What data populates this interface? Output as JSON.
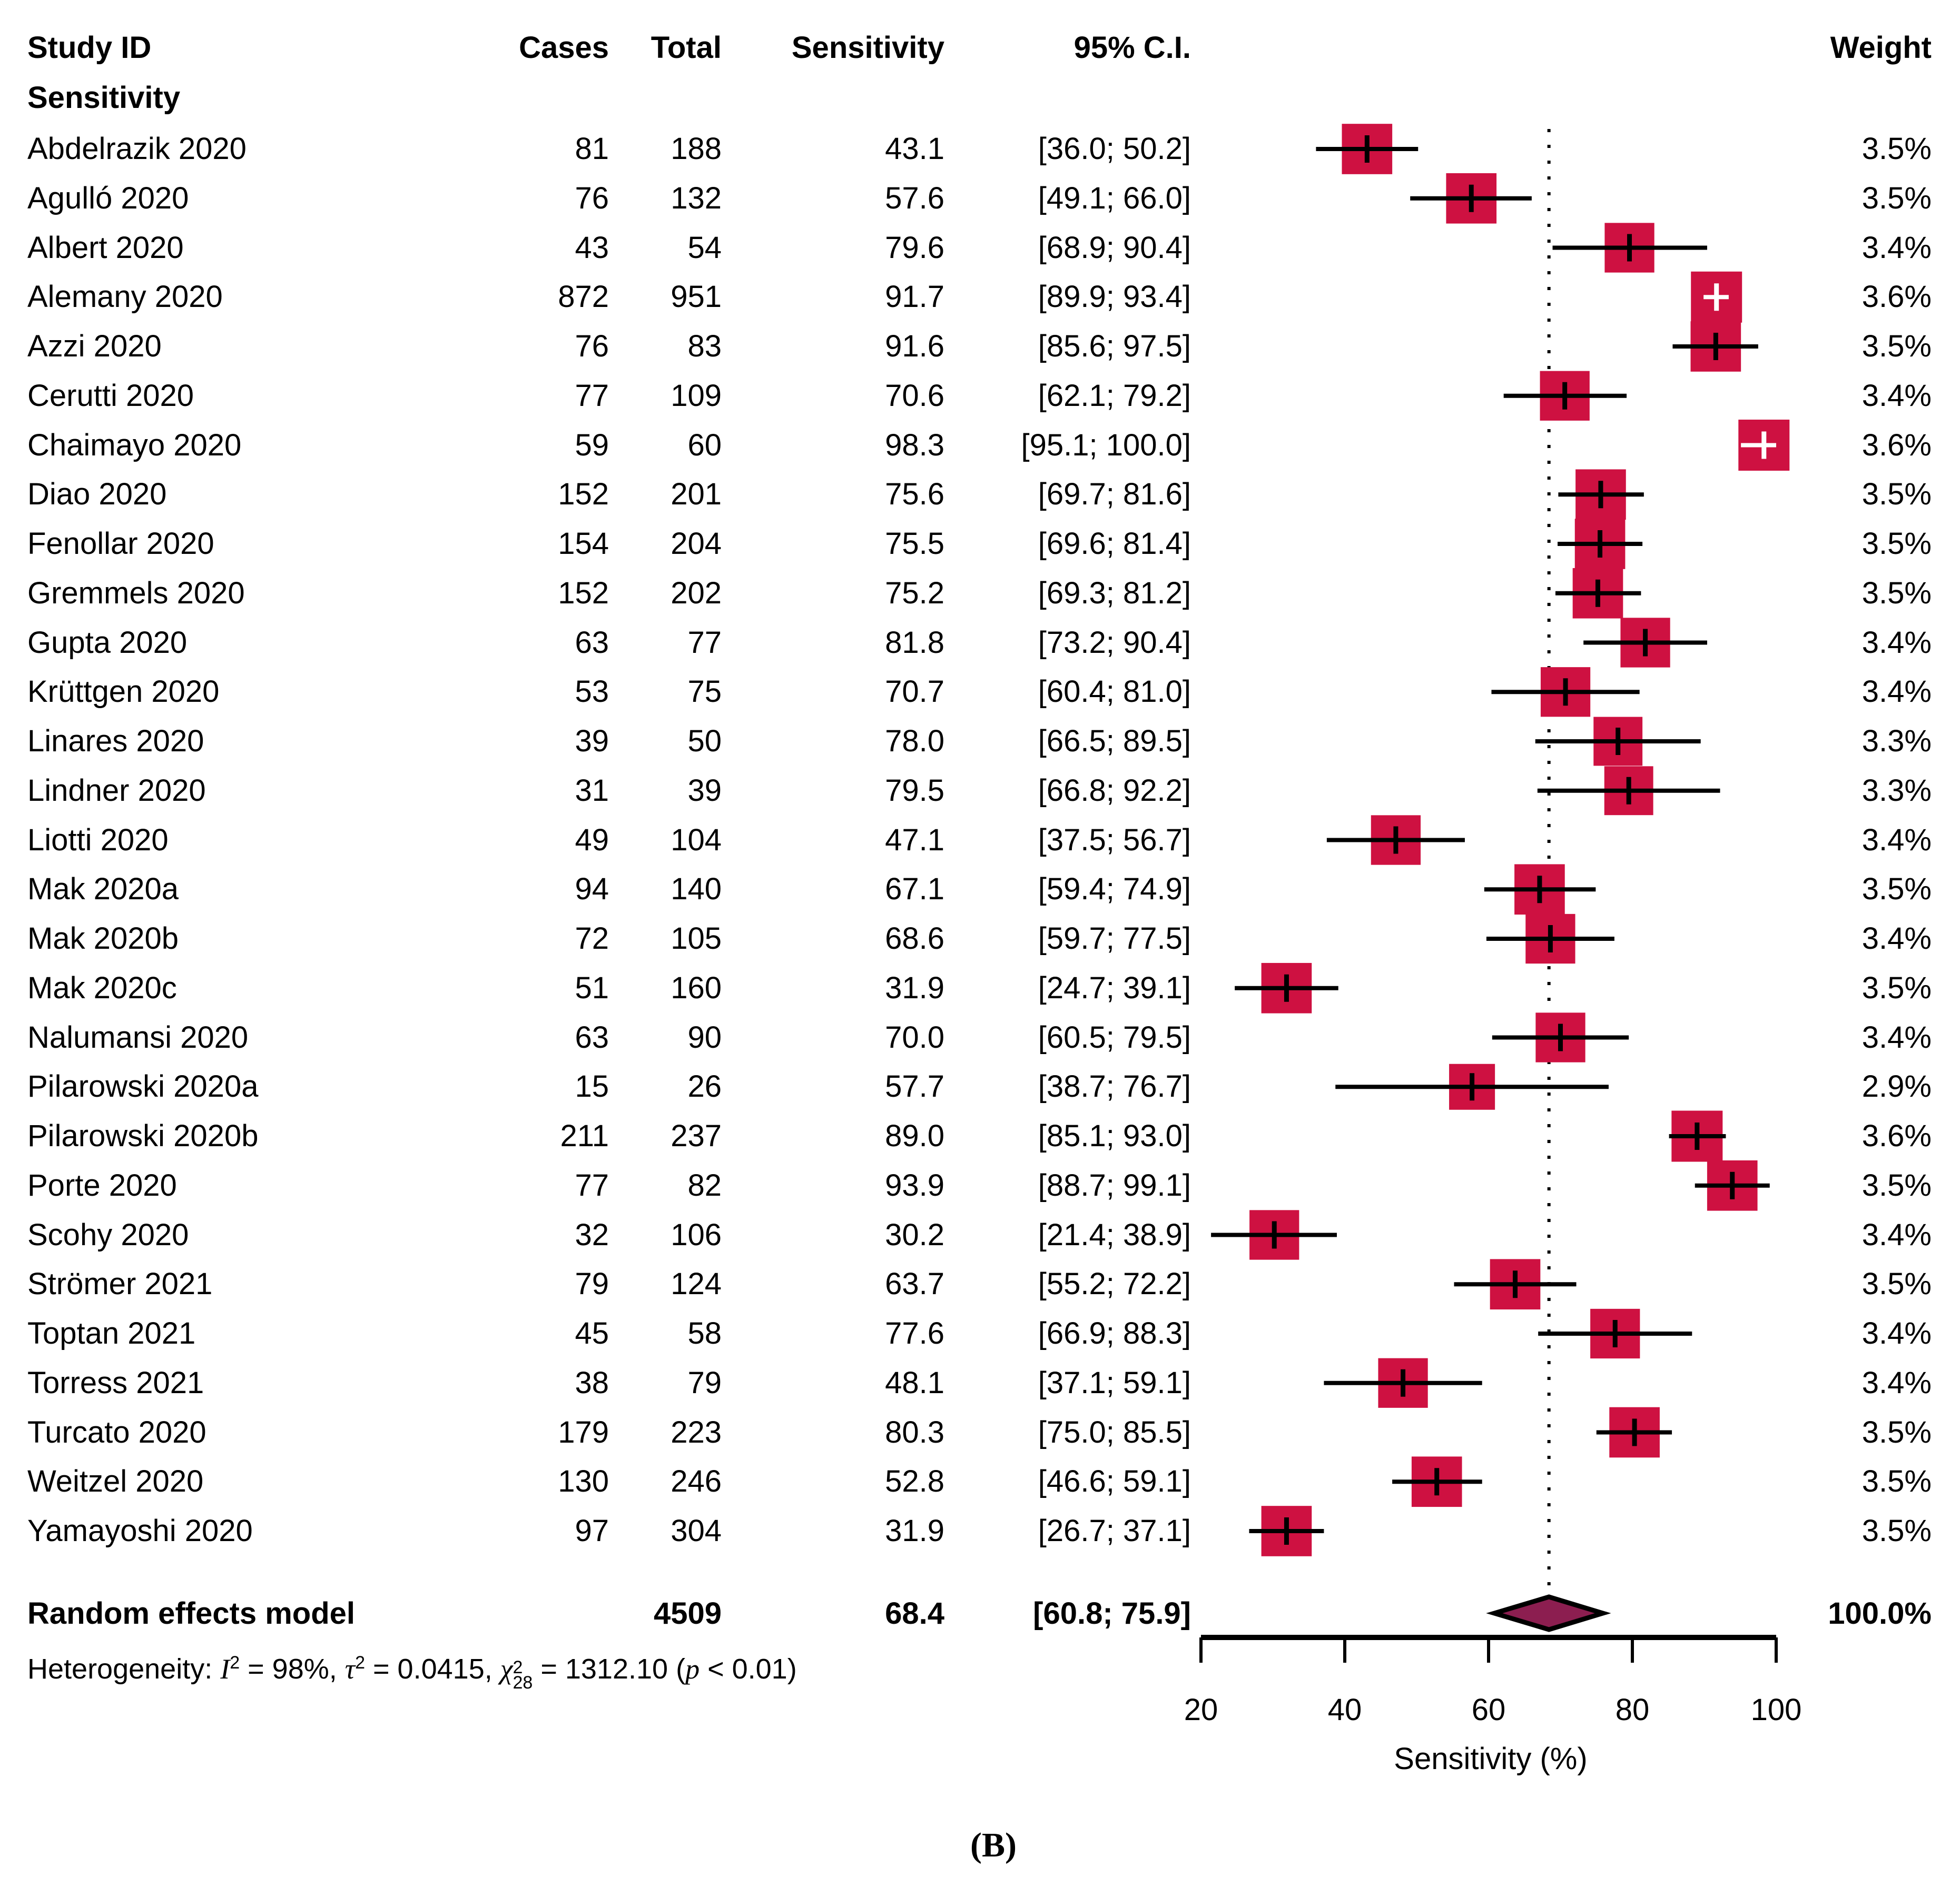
{
  "header": {
    "col_study": "Study ID",
    "subgroup": "Sensitivity",
    "col_cases": "Cases",
    "col_total": "Total",
    "col_sensitivity": "Sensitivity",
    "col_ci": "95% C.I.",
    "col_weight": "Weight"
  },
  "chart_data": {
    "type": "forest",
    "xlabel": "Sensitivity (%)",
    "x_range": [
      20,
      100
    ],
    "x_ticks": [
      20,
      40,
      60,
      80,
      100
    ],
    "grid": "off",
    "pooled_dotted_line_x": 68.4,
    "colors": {
      "square": "#CE1141",
      "diamond": "#8C1E50",
      "line": "#000000",
      "marker_inside": "#FFFFFF"
    },
    "studies": [
      {
        "id": "Abdelrazik 2020",
        "cases": 81,
        "total": 188,
        "sens": 43.1,
        "sens_text": "43.1",
        "ci_lo": 36.0,
        "ci_hi": 50.2,
        "ci_text": "[36.0; 50.2]",
        "weight_pct": 3.5,
        "weight_text": "3.5%"
      },
      {
        "id": "Agulló 2020",
        "cases": 76,
        "total": 132,
        "sens": 57.6,
        "sens_text": "57.6",
        "ci_lo": 49.1,
        "ci_hi": 66.0,
        "ci_text": "[49.1; 66.0]",
        "weight_pct": 3.5,
        "weight_text": "3.5%"
      },
      {
        "id": "Albert 2020",
        "cases": 43,
        "total": 54,
        "sens": 79.6,
        "sens_text": "79.6",
        "ci_lo": 68.9,
        "ci_hi": 90.4,
        "ci_text": "[68.9; 90.4]",
        "weight_pct": 3.4,
        "weight_text": "3.4%"
      },
      {
        "id": "Alemany 2020",
        "cases": 872,
        "total": 951,
        "sens": 91.7,
        "sens_text": "91.7",
        "ci_lo": 89.9,
        "ci_hi": 93.4,
        "ci_text": "[89.9; 93.4]",
        "weight_pct": 3.6,
        "weight_text": "3.6%"
      },
      {
        "id": "Azzi 2020",
        "cases": 76,
        "total": 83,
        "sens": 91.6,
        "sens_text": "91.6",
        "ci_lo": 85.6,
        "ci_hi": 97.5,
        "ci_text": "[85.6; 97.5]",
        "weight_pct": 3.5,
        "weight_text": "3.5%"
      },
      {
        "id": "Cerutti 2020",
        "cases": 77,
        "total": 109,
        "sens": 70.6,
        "sens_text": "70.6",
        "ci_lo": 62.1,
        "ci_hi": 79.2,
        "ci_text": "[62.1; 79.2]",
        "weight_pct": 3.4,
        "weight_text": "3.4%"
      },
      {
        "id": "Chaimayo 2020",
        "cases": 59,
        "total": 60,
        "sens": 98.3,
        "sens_text": "98.3",
        "ci_lo": 95.1,
        "ci_hi": 100.0,
        "ci_text": "[95.1; 100.0]",
        "weight_pct": 3.6,
        "weight_text": "3.6%"
      },
      {
        "id": "Diao 2020",
        "cases": 152,
        "total": 201,
        "sens": 75.6,
        "sens_text": "75.6",
        "ci_lo": 69.7,
        "ci_hi": 81.6,
        "ci_text": "[69.7; 81.6]",
        "weight_pct": 3.5,
        "weight_text": "3.5%"
      },
      {
        "id": "Fenollar 2020",
        "cases": 154,
        "total": 204,
        "sens": 75.5,
        "sens_text": "75.5",
        "ci_lo": 69.6,
        "ci_hi": 81.4,
        "ci_text": "[69.6; 81.4]",
        "weight_pct": 3.5,
        "weight_text": "3.5%"
      },
      {
        "id": "Gremmels 2020",
        "cases": 152,
        "total": 202,
        "sens": 75.2,
        "sens_text": "75.2",
        "ci_lo": 69.3,
        "ci_hi": 81.2,
        "ci_text": "[69.3; 81.2]",
        "weight_pct": 3.5,
        "weight_text": "3.5%"
      },
      {
        "id": "Gupta 2020",
        "cases": 63,
        "total": 77,
        "sens": 81.8,
        "sens_text": "81.8",
        "ci_lo": 73.2,
        "ci_hi": 90.4,
        "ci_text": "[73.2; 90.4]",
        "weight_pct": 3.4,
        "weight_text": "3.4%"
      },
      {
        "id": "Krüttgen 2020",
        "cases": 53,
        "total": 75,
        "sens": 70.7,
        "sens_text": "70.7",
        "ci_lo": 60.4,
        "ci_hi": 81.0,
        "ci_text": "[60.4; 81.0]",
        "weight_pct": 3.4,
        "weight_text": "3.4%"
      },
      {
        "id": "Linares 2020",
        "cases": 39,
        "total": 50,
        "sens": 78.0,
        "sens_text": "78.0",
        "ci_lo": 66.5,
        "ci_hi": 89.5,
        "ci_text": "[66.5; 89.5]",
        "weight_pct": 3.3,
        "weight_text": "3.3%"
      },
      {
        "id": "Lindner 2020",
        "cases": 31,
        "total": 39,
        "sens": 79.5,
        "sens_text": "79.5",
        "ci_lo": 66.8,
        "ci_hi": 92.2,
        "ci_text": "[66.8; 92.2]",
        "weight_pct": 3.3,
        "weight_text": "3.3%"
      },
      {
        "id": "Liotti 2020",
        "cases": 49,
        "total": 104,
        "sens": 47.1,
        "sens_text": "47.1",
        "ci_lo": 37.5,
        "ci_hi": 56.7,
        "ci_text": "[37.5; 56.7]",
        "weight_pct": 3.4,
        "weight_text": "3.4%"
      },
      {
        "id": "Mak 2020a",
        "cases": 94,
        "total": 140,
        "sens": 67.1,
        "sens_text": "67.1",
        "ci_lo": 59.4,
        "ci_hi": 74.9,
        "ci_text": "[59.4; 74.9]",
        "weight_pct": 3.5,
        "weight_text": "3.5%"
      },
      {
        "id": "Mak 2020b",
        "cases": 72,
        "total": 105,
        "sens": 68.6,
        "sens_text": "68.6",
        "ci_lo": 59.7,
        "ci_hi": 77.5,
        "ci_text": "[59.7; 77.5]",
        "weight_pct": 3.4,
        "weight_text": "3.4%"
      },
      {
        "id": "Mak 2020c",
        "cases": 51,
        "total": 160,
        "sens": 31.9,
        "sens_text": "31.9",
        "ci_lo": 24.7,
        "ci_hi": 39.1,
        "ci_text": "[24.7; 39.1]",
        "weight_pct": 3.5,
        "weight_text": "3.5%"
      },
      {
        "id": "Nalumansi 2020",
        "cases": 63,
        "total": 90,
        "sens": 70.0,
        "sens_text": "70.0",
        "ci_lo": 60.5,
        "ci_hi": 79.5,
        "ci_text": "[60.5; 79.5]",
        "weight_pct": 3.4,
        "weight_text": "3.4%"
      },
      {
        "id": "Pilarowski 2020a",
        "cases": 15,
        "total": 26,
        "sens": 57.7,
        "sens_text": "57.7",
        "ci_lo": 38.7,
        "ci_hi": 76.7,
        "ci_text": "[38.7; 76.7]",
        "weight_pct": 2.9,
        "weight_text": "2.9%"
      },
      {
        "id": "Pilarowski 2020b",
        "cases": 211,
        "total": 237,
        "sens": 89.0,
        "sens_text": "89.0",
        "ci_lo": 85.1,
        "ci_hi": 93.0,
        "ci_text": "[85.1; 93.0]",
        "weight_pct": 3.6,
        "weight_text": "3.6%"
      },
      {
        "id": "Porte 2020",
        "cases": 77,
        "total": 82,
        "sens": 93.9,
        "sens_text": "93.9",
        "ci_lo": 88.7,
        "ci_hi": 99.1,
        "ci_text": "[88.7; 99.1]",
        "weight_pct": 3.5,
        "weight_text": "3.5%"
      },
      {
        "id": "Scohy 2020",
        "cases": 32,
        "total": 106,
        "sens": 30.2,
        "sens_text": "30.2",
        "ci_lo": 21.4,
        "ci_hi": 38.9,
        "ci_text": "[21.4; 38.9]",
        "weight_pct": 3.4,
        "weight_text": "3.4%"
      },
      {
        "id": "Strömer 2021",
        "cases": 79,
        "total": 124,
        "sens": 63.7,
        "sens_text": "63.7",
        "ci_lo": 55.2,
        "ci_hi": 72.2,
        "ci_text": "[55.2; 72.2]",
        "weight_pct": 3.5,
        "weight_text": "3.5%"
      },
      {
        "id": "Toptan 2021",
        "cases": 45,
        "total": 58,
        "sens": 77.6,
        "sens_text": "77.6",
        "ci_lo": 66.9,
        "ci_hi": 88.3,
        "ci_text": "[66.9; 88.3]",
        "weight_pct": 3.4,
        "weight_text": "3.4%"
      },
      {
        "id": "Torress 2021",
        "cases": 38,
        "total": 79,
        "sens": 48.1,
        "sens_text": "48.1",
        "ci_lo": 37.1,
        "ci_hi": 59.1,
        "ci_text": "[37.1; 59.1]",
        "weight_pct": 3.4,
        "weight_text": "3.4%"
      },
      {
        "id": "Turcato 2020",
        "cases": 179,
        "total": 223,
        "sens": 80.3,
        "sens_text": "80.3",
        "ci_lo": 75.0,
        "ci_hi": 85.5,
        "ci_text": "[75.0; 85.5]",
        "weight_pct": 3.5,
        "weight_text": "3.5%"
      },
      {
        "id": "Weitzel 2020",
        "cases": 130,
        "total": 246,
        "sens": 52.8,
        "sens_text": "52.8",
        "ci_lo": 46.6,
        "ci_hi": 59.1,
        "ci_text": "[46.6; 59.1]",
        "weight_pct": 3.5,
        "weight_text": "3.5%"
      },
      {
        "id": "Yamayoshi 2020",
        "cases": 97,
        "total": 304,
        "sens": 31.9,
        "sens_text": "31.9",
        "ci_lo": 26.7,
        "ci_hi": 37.1,
        "ci_text": "[26.7; 37.1]",
        "weight_pct": 3.5,
        "weight_text": "3.5%"
      }
    ],
    "summary": {
      "label": "Random effects model",
      "total": 4509,
      "sens": 68.4,
      "sens_text": "68.4",
      "ci_lo": 60.8,
      "ci_hi": 75.9,
      "ci_text": "[60.8; 75.9]",
      "weight_text": "100.0%"
    },
    "heterogeneity": {
      "prefix": "Heterogeneity: ",
      "i_label": "I",
      "i_sup": "2",
      "i_val": " = 98%, ",
      "tau_label": "τ",
      "tau_sup": "2",
      "tau_val": " = 0.0415, ",
      "chi_label": "χ",
      "chi_sup": "2",
      "chi_sub": "28",
      "chi_val": " = 1312.10 (",
      "p_label": "p",
      "p_val": " < 0.01)"
    }
  },
  "caption": "(B)"
}
